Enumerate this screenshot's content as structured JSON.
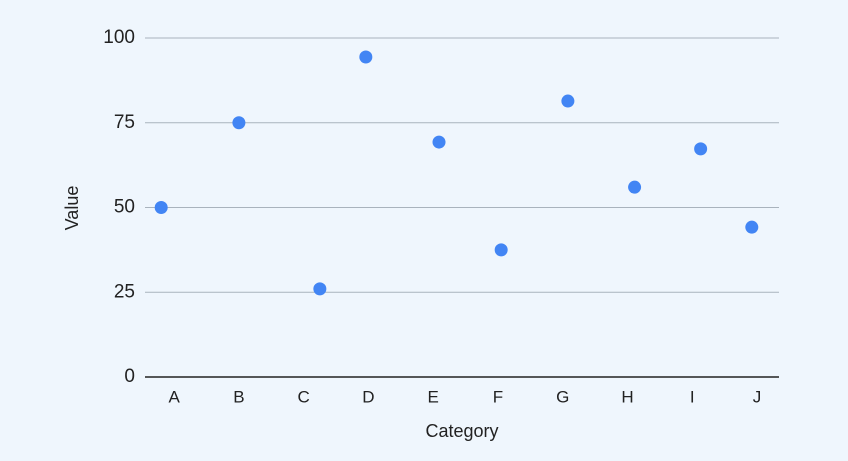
{
  "chart_data": {
    "type": "scatter",
    "x_label": "Category",
    "y_label": "Value",
    "x": [
      -0.2,
      1.0,
      2.25,
      2.96,
      4.09,
      5.05,
      6.08,
      7.11,
      8.13,
      8.92
    ],
    "values": [
      50,
      75,
      26,
      94.4,
      69.3,
      37.5,
      81.4,
      56,
      67.3,
      44.2
    ],
    "color": "#4285f4",
    "xlim": [
      -0.45,
      9.34
    ],
    "xticks": [
      {
        "value": 0,
        "label": "A"
      },
      {
        "value": 1,
        "label": "B"
      },
      {
        "value": 2,
        "label": "C"
      },
      {
        "value": 3,
        "label": "D"
      },
      {
        "value": 4,
        "label": "E"
      },
      {
        "value": 5,
        "label": "F"
      },
      {
        "value": 6,
        "label": "G"
      },
      {
        "value": 7,
        "label": "H"
      },
      {
        "value": 8,
        "label": "I"
      },
      {
        "value": 9,
        "label": "J"
      }
    ],
    "ylim": [
      0,
      100
    ],
    "yticks": [
      0,
      25,
      50,
      75,
      100
    ],
    "grid": true
  }
}
